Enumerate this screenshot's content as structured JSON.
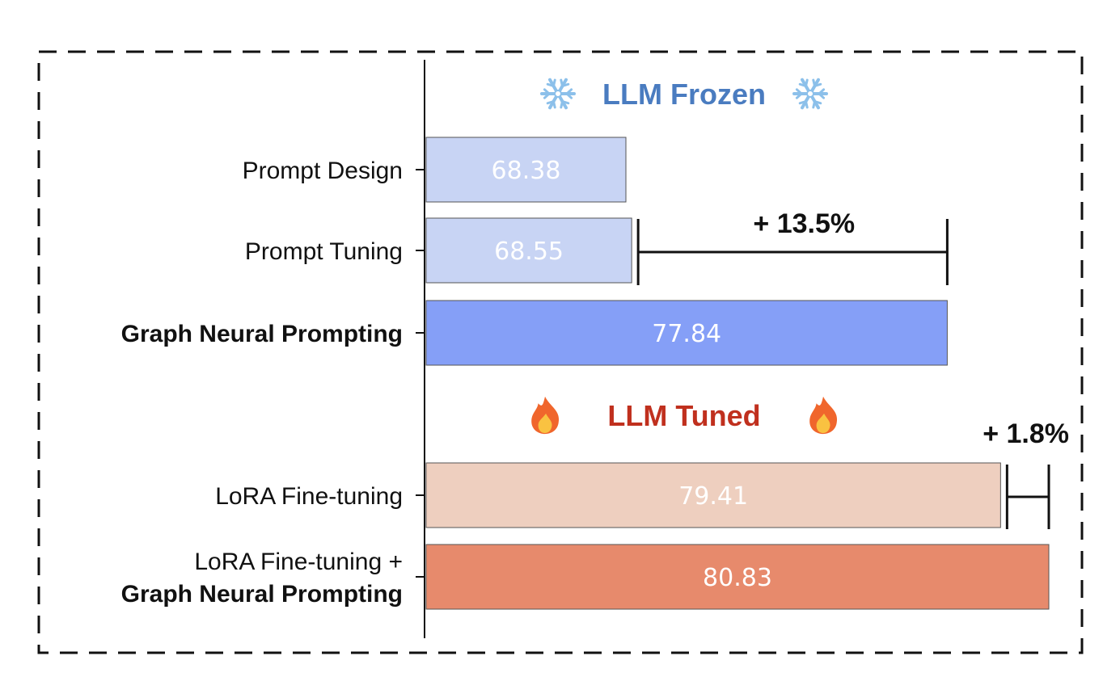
{
  "chart_data": {
    "type": "bar",
    "orientation": "horizontal",
    "groups": [
      {
        "title": "LLM Frozen",
        "title_color": "#4a7cc0",
        "icon": "snowflake-icon",
        "categories": [
          {
            "label_lines": [
              "Prompt Design"
            ],
            "bold": [
              false
            ],
            "value": 68.38,
            "value_label": "68.38",
            "color": "#c8d4f4"
          },
          {
            "label_lines": [
              "Prompt Tuning"
            ],
            "bold": [
              false
            ],
            "value": 68.55,
            "value_label": "68.55",
            "color": "#c8d4f4"
          },
          {
            "label_lines": [
              "Graph Neural Prompting"
            ],
            "bold": [
              true
            ],
            "value": 77.84,
            "value_label": "77.84",
            "color": "#859ff7"
          }
        ],
        "gain": {
          "label": "+ 13.5%",
          "from_value": 68.55,
          "to_value": 77.84
        }
      },
      {
        "title": "LLM Tuned",
        "title_color": "#c0301e",
        "icon": "flame-icon",
        "categories": [
          {
            "label_lines": [
              "LoRA Fine-tuning"
            ],
            "bold": [
              false
            ],
            "value": 79.41,
            "value_label": "79.41",
            "color": "#eecfbf"
          },
          {
            "label_lines": [
              "LoRA Fine-tuning +",
              "Graph Neural Prompting"
            ],
            "bold": [
              false,
              true
            ],
            "value": 80.83,
            "value_label": "80.83",
            "color": "#e78a6c"
          }
        ],
        "gain": {
          "label": "+ 1.8%",
          "from_value": 79.41,
          "to_value": 80.83
        }
      }
    ],
    "xlim": [
      62.5,
      80.83
    ],
    "grid": false,
    "legend": "none",
    "title": "",
    "xlabel": "",
    "ylabel": ""
  }
}
